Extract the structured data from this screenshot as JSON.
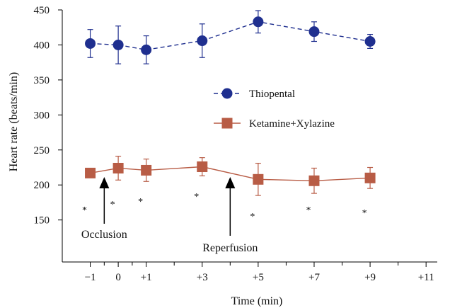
{
  "chart_data": {
    "type": "line",
    "xlabel": "Time (min)",
    "ylabel": "Heart rate (beats/min)",
    "xlim": [
      -2,
      11.4
    ],
    "ylim": [
      90,
      450
    ],
    "x_tick_values": [
      -1,
      0,
      1,
      3,
      5,
      7,
      9,
      11
    ],
    "x_tick_labels": [
      "−1",
      "0",
      "+1",
      "+3",
      "+5",
      "+7",
      "+9",
      "+11"
    ],
    "y_ticks": [
      150,
      200,
      250,
      300,
      350,
      400,
      450
    ],
    "series": [
      {
        "name": "Thiopental",
        "color": "#1f2f8f",
        "marker": "circle",
        "line": "dashed",
        "x": [
          -1,
          0,
          1,
          3,
          5,
          7,
          9
        ],
        "values": [
          402,
          400,
          393,
          406,
          433,
          419,
          405
        ],
        "error": [
          20,
          27,
          20,
          24,
          16,
          14,
          10
        ]
      },
      {
        "name": "Ketamine+Xylazine",
        "color": "#b85c45",
        "marker": "square",
        "line": "solid",
        "x": [
          -1,
          0,
          1,
          3,
          5,
          7,
          9
        ],
        "values": [
          217,
          224,
          221,
          226,
          208,
          206,
          210
        ],
        "error": [
          0,
          17,
          16,
          13,
          23,
          18,
          15
        ]
      }
    ],
    "significance_x": [
      -1,
      0,
      1,
      3,
      5,
      7,
      9
    ],
    "significance_marks": [
      "*",
      "*",
      "*",
      "*",
      "*",
      "*",
      "*"
    ],
    "annotations": [
      {
        "text": "Occlusion",
        "x": -0.5
      },
      {
        "text": "Reperfusion",
        "x": 4
      }
    ],
    "legend_position": "center-right",
    "grid": false
  }
}
